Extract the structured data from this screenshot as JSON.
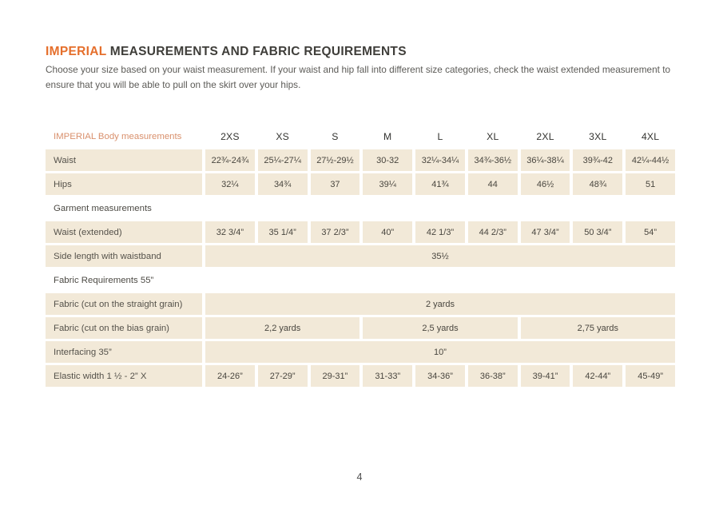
{
  "theme": {
    "title_accent_color": "#e56f2c",
    "table_label_color": "#d9906c",
    "cell_background": "#f2e9d8"
  },
  "header": {
    "title_highlight": "IMPERIAL",
    "title_rest": " MEASUREMENTS AND FABRIC REQUIREMENTS",
    "subtitle": "Choose your size based on your waist measurement. If your waist and hip fall into different size categories, check the waist extended measurement to ensure that you will be able to pull on the skirt over your hips."
  },
  "table": {
    "header_label": "IMPERIAL Body measurements",
    "sizes": [
      "2XS",
      "XS",
      "S",
      "M",
      "L",
      "XL",
      "2XL",
      "3XL",
      "4XL"
    ],
    "rows": [
      {
        "type": "data",
        "label": "Waist",
        "values": [
          "22¾-24¾",
          "25¼-27¼",
          "27½-29½",
          "30-32",
          "32¼-34¼",
          "34¾-36½",
          "36¼-38¼",
          "39¾-42",
          "42¼-44½"
        ]
      },
      {
        "type": "data",
        "label": "Hips",
        "values": [
          "32¼",
          "34¾",
          "37",
          "39¼",
          "41¾",
          "44",
          "46½",
          "48¾",
          "51"
        ]
      },
      {
        "type": "section",
        "label": "Garment measurements"
      },
      {
        "type": "data",
        "label": "Waist (extended)",
        "values": [
          "32 3/4”",
          "35 1/4”",
          "37 2/3”",
          "40”",
          "42 1/3”",
          "44 2/3”",
          "47 3/4”",
          "50 3/4”",
          "54”"
        ]
      },
      {
        "type": "span",
        "label": "Side length with waistband",
        "spans": [
          {
            "value": "35½",
            "cols": 9
          }
        ]
      },
      {
        "type": "section",
        "label": "Fabric Requirements 55”"
      },
      {
        "type": "span",
        "label": "Fabric (cut on the straight grain)",
        "spans": [
          {
            "value": "2 yards",
            "cols": 9
          }
        ]
      },
      {
        "type": "span",
        "label": "Fabric (cut on the bias grain)",
        "spans": [
          {
            "value": "2,2 yards",
            "cols": 3
          },
          {
            "value": "2,5 yards",
            "cols": 3
          },
          {
            "value": "2,75 yards",
            "cols": 3
          }
        ]
      },
      {
        "type": "span",
        "label": "Interfacing 35”",
        "spans": [
          {
            "value": "10”",
            "cols": 9
          }
        ]
      },
      {
        "type": "data",
        "label": "Elastic width 1 ½ - 2” X",
        "values": [
          "24-26”",
          "27-29”",
          "29-31”",
          "31-33”",
          "34-36”",
          "36-38”",
          "39-41”",
          "42-44”",
          "45-49”"
        ]
      }
    ]
  },
  "footer": {
    "page_number": "4"
  }
}
